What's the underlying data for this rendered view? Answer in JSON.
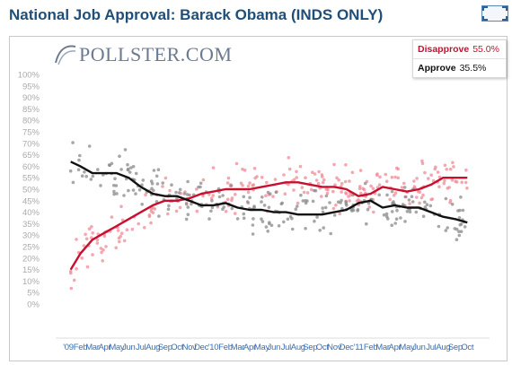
{
  "title": "National Job Approval: Barack Obama (INDS ONLY)",
  "logo": {
    "text": "POLLSTER.COM"
  },
  "icons": {
    "expand": "expand-icon",
    "logo": "pollster-logo-icon"
  },
  "colors": {
    "disapprove": "#c8102e",
    "approve": "#111111",
    "disapprove_dots": "#f08a96",
    "approve_dots": "#8a8a8a",
    "title": "#1f4e79",
    "x_tick": "#3a6fb0",
    "y_tick": "#aaaaaa"
  },
  "legend": [
    {
      "name": "Disapprove",
      "value": "55.0%"
    },
    {
      "name": "Approve",
      "value": "35.5%"
    }
  ],
  "chart_data": {
    "type": "scatter",
    "title": "National Job Approval: Barack Obama (INDS ONLY)",
    "xlabel": "",
    "ylabel": "",
    "ylim": [
      0,
      100
    ],
    "y_ticks": [
      "100%",
      "95%",
      "90%",
      "85%",
      "80%",
      "75%",
      "70%",
      "65%",
      "60%",
      "55%",
      "50%",
      "45%",
      "40%",
      "35%",
      "30%",
      "25%",
      "20%",
      "15%",
      "10%",
      "5%",
      "0%"
    ],
    "x_ticks": [
      "'09",
      "Feb",
      "Mar",
      "Apr",
      "May",
      "Jun",
      "Jul",
      "Aug",
      "Sep",
      "Oct",
      "Nov",
      "Dec",
      "'10",
      "Feb",
      "Mar",
      "Apr",
      "May",
      "Jun",
      "Jul",
      "Aug",
      "Sep",
      "Oct",
      "Nov",
      "Dec",
      "'11",
      "Feb",
      "Mar",
      "Apr",
      "May",
      "Jun",
      "Jul",
      "Aug",
      "Sep",
      "Oct"
    ],
    "x_unit": "month index (0 = Jan 2009)",
    "xlim": [
      0,
      33.5
    ],
    "grid": false,
    "legend_position": "top-right",
    "series": [
      {
        "name": "Disapprove",
        "trend": [
          [
            0.2,
            15
          ],
          [
            1,
            22
          ],
          [
            2,
            28
          ],
          [
            3,
            31
          ],
          [
            4,
            34
          ],
          [
            5,
            37
          ],
          [
            6,
            40
          ],
          [
            7,
            43
          ],
          [
            8,
            45
          ],
          [
            9,
            45
          ],
          [
            10,
            46
          ],
          [
            11,
            48
          ],
          [
            12,
            49
          ],
          [
            13,
            50
          ],
          [
            14,
            50
          ],
          [
            15,
            50
          ],
          [
            16,
            51
          ],
          [
            17,
            52
          ],
          [
            18,
            53
          ],
          [
            19,
            53
          ],
          [
            20,
            52
          ],
          [
            21,
            51
          ],
          [
            22,
            51
          ],
          [
            23,
            50
          ],
          [
            24,
            47
          ],
          [
            25,
            48
          ],
          [
            26,
            51
          ],
          [
            27,
            50
          ],
          [
            28,
            49
          ],
          [
            29,
            50
          ],
          [
            30,
            52
          ],
          [
            31,
            55
          ],
          [
            32,
            55
          ],
          [
            33,
            55
          ]
        ]
      },
      {
        "name": "Approve",
        "trend": [
          [
            0.2,
            62
          ],
          [
            1,
            60
          ],
          [
            2,
            57
          ],
          [
            3,
            57
          ],
          [
            4,
            57
          ],
          [
            5,
            55
          ],
          [
            6,
            51
          ],
          [
            7,
            48
          ],
          [
            8,
            47
          ],
          [
            9,
            47
          ],
          [
            10,
            45
          ],
          [
            11,
            43
          ],
          [
            12,
            43
          ],
          [
            13,
            44
          ],
          [
            14,
            42
          ],
          [
            15,
            41
          ],
          [
            16,
            41
          ],
          [
            17,
            40
          ],
          [
            18,
            40
          ],
          [
            19,
            39
          ],
          [
            20,
            39
          ],
          [
            21,
            39
          ],
          [
            22,
            40
          ],
          [
            23,
            41
          ],
          [
            24,
            44
          ],
          [
            25,
            45
          ],
          [
            26,
            42
          ],
          [
            27,
            43
          ],
          [
            28,
            42
          ],
          [
            29,
            42
          ],
          [
            30,
            40
          ],
          [
            31,
            38
          ],
          [
            32,
            37
          ],
          [
            33,
            35.5
          ]
        ]
      }
    ]
  }
}
